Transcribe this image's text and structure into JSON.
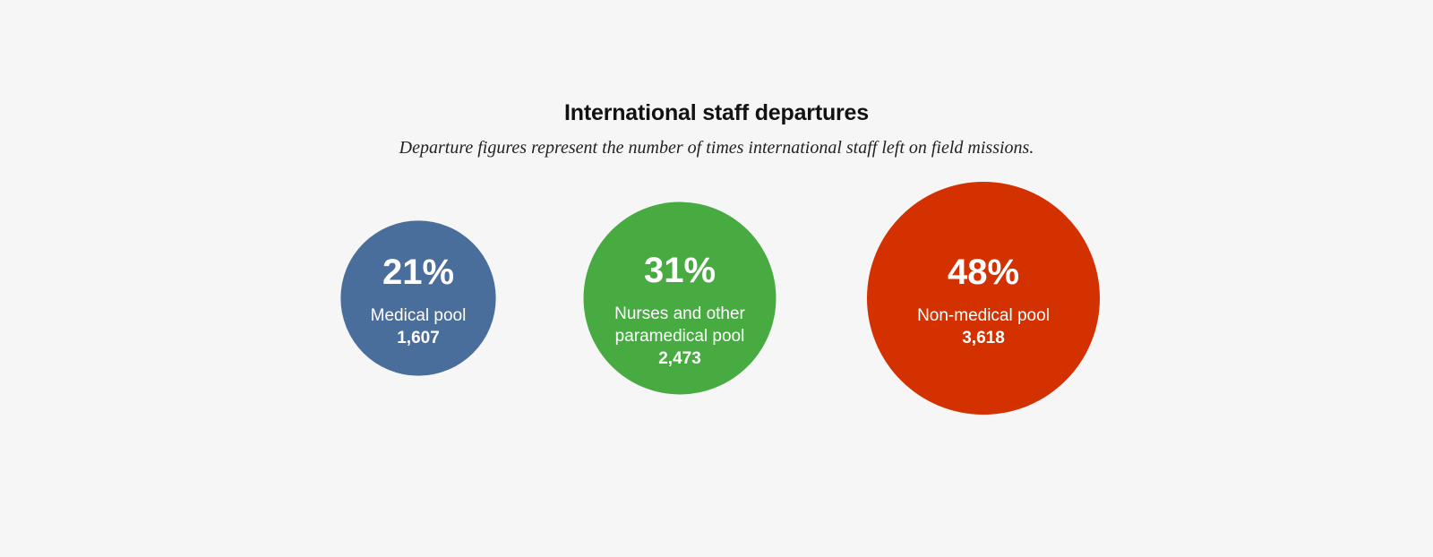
{
  "chart_data": {
    "type": "bubble",
    "title": "International staff departures",
    "subtitle": "Departure figures represent the number of times international staff left on field missions.",
    "items": [
      {
        "id": "medical",
        "percent": 21,
        "percent_label": "21%",
        "label_lines": [
          "Medical pool"
        ],
        "count": 1607,
        "count_label": "1,607",
        "color": "#4a6e9b"
      },
      {
        "id": "nurses",
        "percent": 31,
        "percent_label": "31%",
        "label_lines": [
          "Nurses and other",
          "paramedical pool"
        ],
        "count": 2473,
        "count_label": "2,473",
        "color": "#48ab42"
      },
      {
        "id": "non-medical",
        "percent": 48,
        "percent_label": "48%",
        "label_lines": [
          "Non-medical pool"
        ],
        "count": 3618,
        "count_label": "3,618",
        "color": "#d43100"
      }
    ]
  }
}
